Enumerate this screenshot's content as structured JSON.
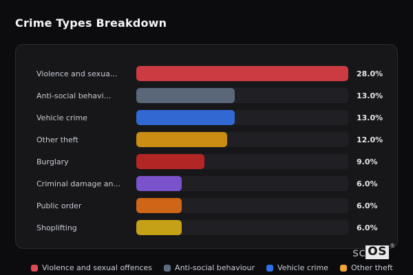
{
  "title": "Crime Types Breakdown",
  "chart_data": {
    "type": "bar",
    "orientation": "horizontal",
    "title": "Crime Types Breakdown",
    "categories": [
      "Violence and sexua...",
      "Anti-social behavi...",
      "Vehicle crime",
      "Other theft",
      "Burglary",
      "Criminal damage an...",
      "Public order",
      "Shoplifting"
    ],
    "values": [
      28.0,
      13.0,
      13.0,
      12.0,
      9.0,
      6.0,
      6.0,
      6.0
    ],
    "value_labels": [
      "28.0%",
      "13.0%",
      "13.0%",
      "12.0%",
      "9.0%",
      "6.0%",
      "6.0%",
      " 6.0%"
    ],
    "bar_colors": [
      "#cc3b41",
      "#5a6779",
      "#3168d2",
      "#c98e13",
      "#b22626",
      "#7a52cb",
      "#cd6616",
      "#c5a117"
    ],
    "xlim": [
      0,
      28
    ],
    "grid": false,
    "legend_position": "bottom",
    "legend": [
      {
        "label": "Violence and sexual offences",
        "color": "#e04a50"
      },
      {
        "label": "Anti-social behaviour",
        "color": "#5e6c81"
      },
      {
        "label": "Vehicle crime",
        "color": "#2f70e8"
      },
      {
        "label": "Other theft",
        "color": "#f0a437"
      }
    ]
  },
  "watermark": {
    "prefix": "sc",
    "suffix": "OS",
    "registered": "®"
  },
  "colors": {
    "page_background": "#0c0c0f",
    "card_background": "#17171a",
    "card_border": "#2b2b31",
    "track": "#1f1f24",
    "title_text": "#f4f5f7",
    "label_text": "#c8ccd3",
    "value_text": "#e3e5e9"
  }
}
